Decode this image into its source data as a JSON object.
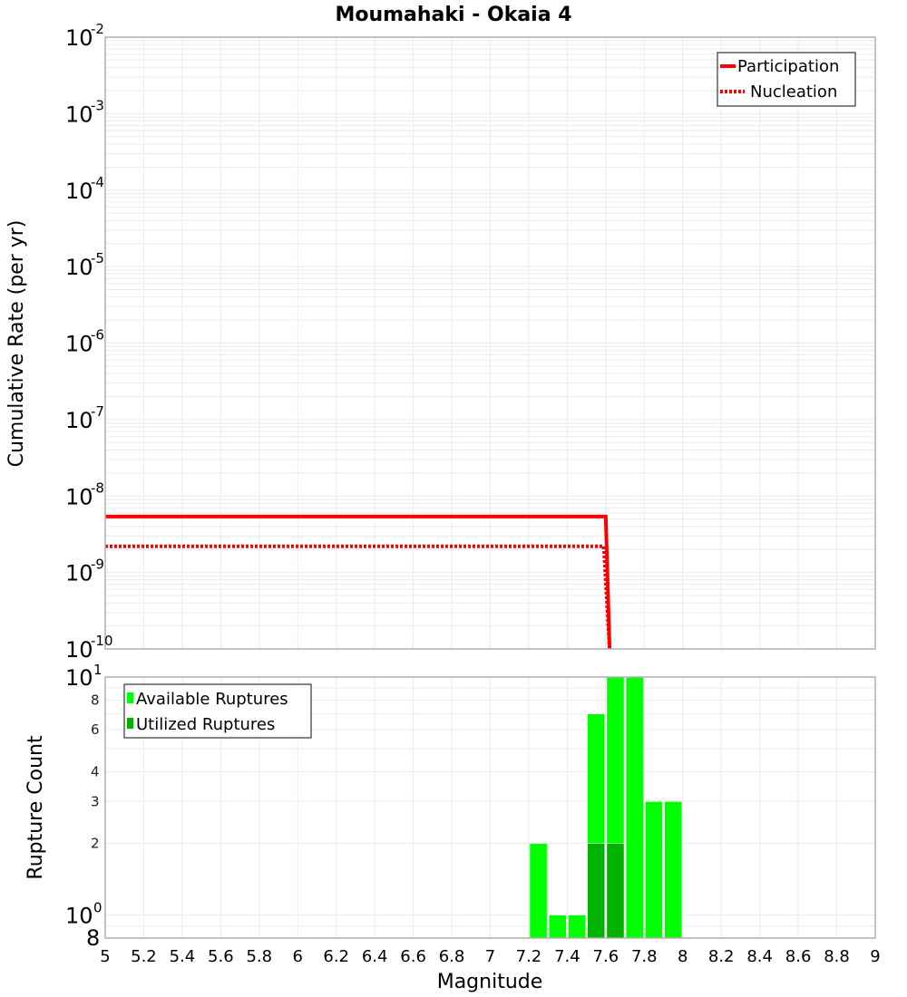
{
  "chart_data": [
    {
      "type": "line",
      "title": "Moumahaki - Okaia 4",
      "xlabel": "Magnitude",
      "ylabel": "Cumulative Rate (per yr)",
      "yscale": "log",
      "xlim": [
        5,
        9
      ],
      "ylim": [
        1e-10,
        0.01
      ],
      "y_tick_exponents": [
        -2,
        -3,
        -4,
        -5,
        -6,
        -7,
        -8,
        -9,
        -10
      ],
      "grid": true,
      "legend_position": "upper right",
      "series": [
        {
          "name": "Participation",
          "style": "solid",
          "color": "#ff0000",
          "x": [
            5.0,
            7.6,
            7.62
          ],
          "y": [
            5.4e-09,
            5.4e-09,
            1e-10
          ]
        },
        {
          "name": "Nucleation",
          "style": "dotted",
          "color": "#ff0000",
          "x": [
            5.0,
            7.59,
            7.62
          ],
          "y": [
            2.2e-09,
            2.2e-09,
            1e-10
          ]
        }
      ]
    },
    {
      "type": "bar",
      "xlabel": "Magnitude",
      "ylabel": "Rupture Count",
      "yscale": "log",
      "xlim": [
        5,
        9
      ],
      "ylim": [
        0.8,
        10
      ],
      "x_ticks": [
        "5",
        "5.2",
        "5.4",
        "5.6",
        "5.8",
        "6",
        "6.2",
        "6.4",
        "6.6",
        "6.8",
        "7",
        "7.2",
        "7.4",
        "7.6",
        "7.8",
        "8",
        "8.2",
        "8.4",
        "8.6",
        "8.8",
        "9"
      ],
      "y_tick_labels": [
        {
          "value": 10,
          "label": "10",
          "sup": "1",
          "big": true
        },
        {
          "value": 8,
          "label": "8",
          "big": false
        },
        {
          "value": 6,
          "label": "6",
          "big": false
        },
        {
          "value": 4,
          "label": "4",
          "big": false
        },
        {
          "value": 3,
          "label": "3",
          "big": false
        },
        {
          "value": 2,
          "label": "2",
          "big": false
        },
        {
          "value": 1,
          "label": "10",
          "sup": "0",
          "big": true
        },
        {
          "value": 0.8,
          "label": "8",
          "big": true
        }
      ],
      "grid": true,
      "legend_position": "upper left",
      "bin_width": 0.1,
      "categories": [
        7.25,
        7.35,
        7.45,
        7.55,
        7.65,
        7.75,
        7.85,
        7.95
      ],
      "series": [
        {
          "name": "Available Ruptures",
          "color": "#00ff00",
          "values": [
            2,
            1,
            1,
            7,
            10,
            10,
            3,
            3
          ]
        },
        {
          "name": "Utilized Ruptures",
          "color": "#00b300",
          "values": [
            0,
            0,
            0,
            2,
            2,
            0,
            0,
            0
          ]
        }
      ]
    }
  ]
}
